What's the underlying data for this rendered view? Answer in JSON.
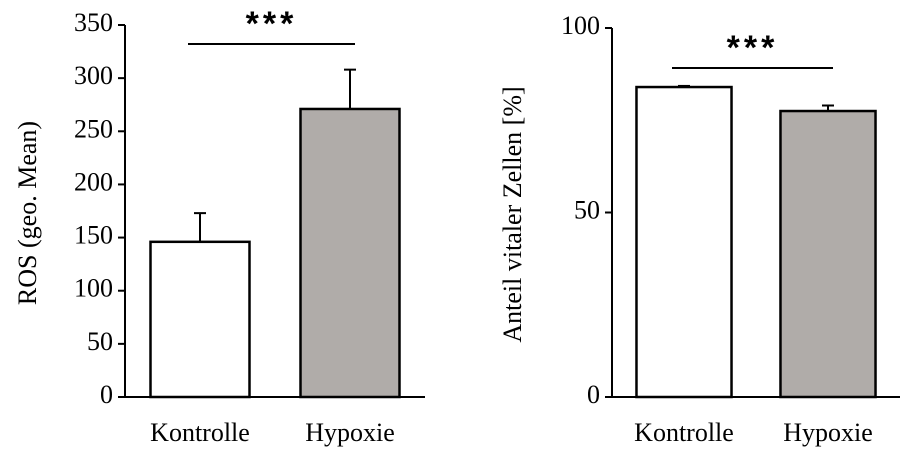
{
  "chart_data": [
    {
      "type": "bar",
      "ylabel": "ROS (geo. Mean)",
      "categories": [
        "Kontrolle",
        "Hypoxie"
      ],
      "values": [
        146,
        271
      ],
      "errors": [
        27,
        37
      ],
      "colors": [
        "#ffffff",
        "#b0aca9"
      ],
      "ylim": [
        0,
        350
      ],
      "yticks": [
        0,
        50,
        100,
        150,
        200,
        250,
        300,
        350
      ],
      "annotation": "***"
    },
    {
      "type": "bar",
      "ylabel": "Anteil vitaler Zellen [%]",
      "categories": [
        "Kontrolle",
        "Hypoxie"
      ],
      "values": [
        84,
        77.5
      ],
      "errors": [
        0.3,
        1.5
      ],
      "colors": [
        "#ffffff",
        "#b0aca9"
      ],
      "ylim": [
        0,
        100
      ],
      "yticks": [
        0,
        50,
        100
      ],
      "annotation": "***"
    }
  ]
}
